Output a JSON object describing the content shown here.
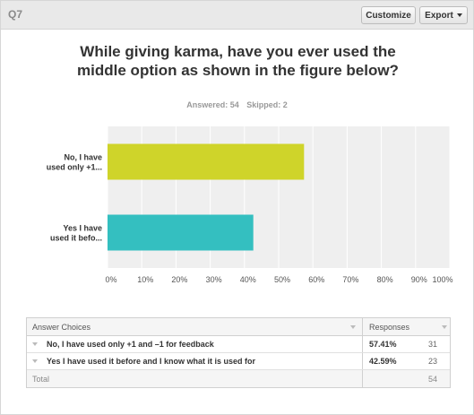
{
  "header": {
    "question_label": "Q7",
    "customize_label": "Customize",
    "export_label": "Export"
  },
  "question": {
    "title": "While giving karma, have you ever used the middle option as shown in the figure below?",
    "answered": "Answered: 54",
    "skipped": "Skipped: 2"
  },
  "chart_data": {
    "type": "bar",
    "orientation": "horizontal",
    "categories": [
      "No, I have used only +1...",
      "Yes I have used it befo..."
    ],
    "category_lines": [
      [
        "No, I have",
        "used only +1..."
      ],
      [
        "Yes I have",
        "used it befo..."
      ]
    ],
    "values": [
      57.41,
      42.59
    ],
    "colors": [
      "#cfd42a",
      "#34bfc0"
    ],
    "xlim": [
      0,
      100
    ],
    "xticks": [
      "0%",
      "10%",
      "20%",
      "30%",
      "40%",
      "50%",
      "60%",
      "70%",
      "80%",
      "90%",
      "100%"
    ],
    "grid": true,
    "background": "#efefef"
  },
  "table": {
    "headers": {
      "choices": "Answer Choices",
      "responses": "Responses"
    },
    "rows": [
      {
        "choice": "No, I have used only +1 and –1 for feedback",
        "percent": "57.41%",
        "count": "31"
      },
      {
        "choice": "Yes I have used it before and I know what it is used for",
        "percent": "42.59%",
        "count": "23"
      }
    ],
    "total_label": "Total",
    "total_count": "54"
  }
}
